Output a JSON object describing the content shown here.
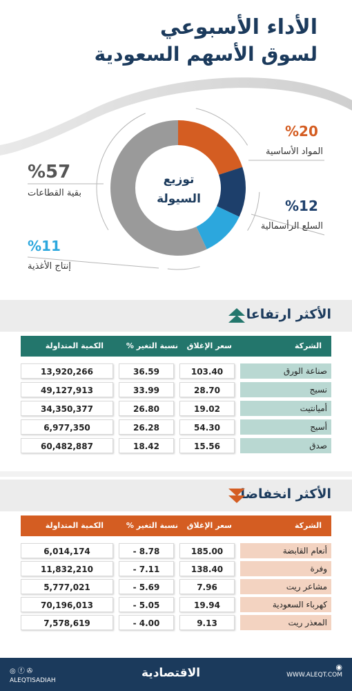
{
  "header": {
    "title_line1": "الأداء الأسبوعي",
    "title_line2": "لسوق الأسهم السعودية"
  },
  "chart_data": {
    "type": "pie",
    "center_label_line1": "توزيع",
    "center_label_line2": "السيولة",
    "slices": [
      {
        "label": "المواد الأساسية",
        "value": 20,
        "pct_text": "%20",
        "color": "#d45d22"
      },
      {
        "label": "السلع الرأسمالية",
        "value": 12,
        "pct_text": "%12",
        "color": "#1d3f6b"
      },
      {
        "label": "إنتاج الأغذية",
        "value": 11,
        "pct_text": "%11",
        "color": "#2ca7dd"
      },
      {
        "label": "بقية القطاعات",
        "value": 57,
        "pct_text": "%57",
        "color": "#9a9a9a"
      }
    ]
  },
  "gainers": {
    "title": "الأكثر ارتفاعا",
    "header_color": "#23766c",
    "name_color": "#b9d8d2",
    "columns": {
      "company": "الشركة",
      "close": "سعر الإغلاق",
      "change": "نسبة التغير %",
      "volume": "الكمية المتداولة"
    },
    "rows": [
      {
        "company": "صناعة الورق",
        "close": "103.40",
        "change": "36.59",
        "volume": "13,920,266"
      },
      {
        "company": "نسيج",
        "close": "28.70",
        "change": "33.99",
        "volume": "49,127,913"
      },
      {
        "company": "أميانتيت",
        "close": "19.02",
        "change": "26.80",
        "volume": "34,350,377"
      },
      {
        "company": "أسيج",
        "close": "54.30",
        "change": "26.28",
        "volume": "6,977,350"
      },
      {
        "company": "صدق",
        "close": "15.56",
        "change": "18.42",
        "volume": "60,482,887"
      }
    ]
  },
  "losers": {
    "title": "الأكثر انخفاضا",
    "header_color": "#d45d22",
    "name_color": "#f3d3c1",
    "columns": {
      "company": "الشركة",
      "close": "سعر الإغلاق",
      "change": "نسبة التغير %",
      "volume": "الكمية المتداولة"
    },
    "rows": [
      {
        "company": "أنعام القابضة",
        "close": "185.00",
        "change": "- 8.78",
        "volume": "6,014,174"
      },
      {
        "company": "وفرة",
        "close": "138.40",
        "change": "- 7.11",
        "volume": "11,832,210"
      },
      {
        "company": "مشاعر ريت",
        "close": "7.96",
        "change": "- 5.69",
        "volume": "5,777,021"
      },
      {
        "company": "كهرباء السعودية",
        "close": "19.94",
        "change": "- 5.05",
        "volume": "70,196,013"
      },
      {
        "company": "المعذر ريت",
        "close": "9.13",
        "change": "- 4.00",
        "volume": "7,578,619"
      }
    ]
  },
  "footer": {
    "brand": "الاقتصادية",
    "website": "WWW.ALEQT.COM",
    "handle": "ALEQTISADIAH"
  }
}
